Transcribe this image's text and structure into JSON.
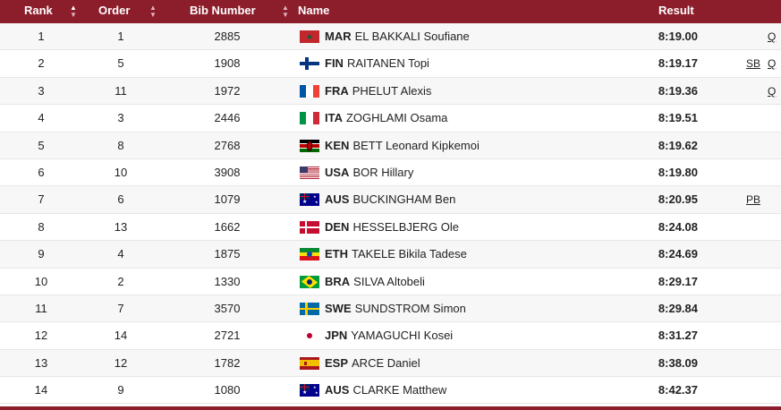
{
  "headers": {
    "rank": "Rank",
    "order": "Order",
    "bib": "Bib Number",
    "name": "Name",
    "result": "Result"
  },
  "rows": [
    {
      "rank": "1",
      "order": "1",
      "bib": "2885",
      "noc": "MAR",
      "athlete": "EL BAKKALI Soufiane",
      "result": "8:19.00",
      "tags": [
        "",
        "Q"
      ],
      "flag": "MAR"
    },
    {
      "rank": "2",
      "order": "5",
      "bib": "1908",
      "noc": "FIN",
      "athlete": "RAITANEN Topi",
      "result": "8:19.17",
      "tags": [
        "SB",
        "Q"
      ],
      "flag": "FIN"
    },
    {
      "rank": "3",
      "order": "11",
      "bib": "1972",
      "noc": "FRA",
      "athlete": "PHELUT Alexis",
      "result": "8:19.36",
      "tags": [
        "",
        "Q"
      ],
      "flag": "FRA"
    },
    {
      "rank": "4",
      "order": "3",
      "bib": "2446",
      "noc": "ITA",
      "athlete": "ZOGHLAMI Osama",
      "result": "8:19.51",
      "tags": [
        "",
        ""
      ],
      "flag": "ITA"
    },
    {
      "rank": "5",
      "order": "8",
      "bib": "2768",
      "noc": "KEN",
      "athlete": "BETT Leonard Kipkemoi",
      "result": "8:19.62",
      "tags": [
        "",
        ""
      ],
      "flag": "KEN"
    },
    {
      "rank": "6",
      "order": "10",
      "bib": "3908",
      "noc": "USA",
      "athlete": "BOR Hillary",
      "result": "8:19.80",
      "tags": [
        "",
        ""
      ],
      "flag": "USA"
    },
    {
      "rank": "7",
      "order": "6",
      "bib": "1079",
      "noc": "AUS",
      "athlete": "BUCKINGHAM Ben",
      "result": "8:20.95",
      "tags": [
        "PB",
        ""
      ],
      "flag": "AUS"
    },
    {
      "rank": "8",
      "order": "13",
      "bib": "1662",
      "noc": "DEN",
      "athlete": "HESSELBJERG Ole",
      "result": "8:24.08",
      "tags": [
        "",
        ""
      ],
      "flag": "DEN"
    },
    {
      "rank": "9",
      "order": "4",
      "bib": "1875",
      "noc": "ETH",
      "athlete": "TAKELE Bikila Tadese",
      "result": "8:24.69",
      "tags": [
        "",
        ""
      ],
      "flag": "ETH"
    },
    {
      "rank": "10",
      "order": "2",
      "bib": "1330",
      "noc": "BRA",
      "athlete": "SILVA Altobeli",
      "result": "8:29.17",
      "tags": [
        "",
        ""
      ],
      "flag": "BRA"
    },
    {
      "rank": "11",
      "order": "7",
      "bib": "3570",
      "noc": "SWE",
      "athlete": "SUNDSTROM Simon",
      "result": "8:29.84",
      "tags": [
        "",
        ""
      ],
      "flag": "SWE"
    },
    {
      "rank": "12",
      "order": "14",
      "bib": "2721",
      "noc": "JPN",
      "athlete": "YAMAGUCHI Kosei",
      "result": "8:31.27",
      "tags": [
        "",
        ""
      ],
      "flag": "JPN"
    },
    {
      "rank": "13",
      "order": "12",
      "bib": "1782",
      "noc": "ESP",
      "athlete": "ARCE Daniel",
      "result": "8:38.09",
      "tags": [
        "",
        ""
      ],
      "flag": "ESP"
    },
    {
      "rank": "14",
      "order": "9",
      "bib": "1080",
      "noc": "AUS",
      "athlete": "CLARKE Matthew",
      "result": "8:42.37",
      "tags": [
        "",
        ""
      ],
      "flag": "AUS"
    }
  ],
  "colors": {
    "header_bg": "#8c1d2b",
    "alt_row_bg": "#f7f7f7"
  }
}
